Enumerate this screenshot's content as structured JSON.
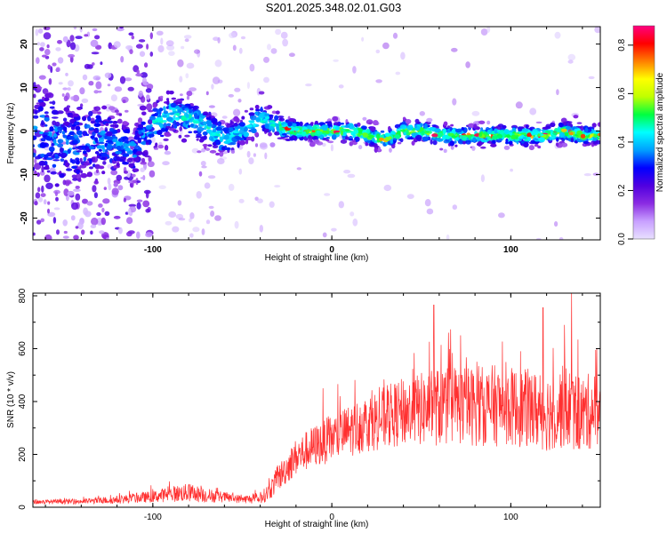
{
  "chart_data": [
    {
      "type": "heatmap",
      "title": "S201.2025.348.02.01.G03",
      "xlabel": "Height of straight line (km)",
      "ylabel": "Frequency (Hz)",
      "xlim": [
        -167,
        150
      ],
      "ylim": [
        -25,
        24
      ],
      "xticks": [
        -100,
        0,
        100
      ],
      "yticks": [
        -20,
        -10,
        0,
        10,
        20
      ],
      "colorbar": {
        "label": "Normalized spectral amplitude",
        "range": [
          0.0,
          0.88
        ],
        "ticks": [
          0.0,
          0.2,
          0.4,
          0.6,
          0.8
        ],
        "tick_labels": [
          "0.0",
          "0.2",
          "0.4",
          "0.6",
          "0.8"
        ],
        "colormap": [
          "#e8e0ff",
          "#c8a0ff",
          "#8a2be2",
          "#5000e0",
          "#0000ff",
          "#00a0ff",
          "#00ffff",
          "#00ff40",
          "#c0ff00",
          "#ffff00",
          "#ff8000",
          "#ff0000",
          "#ff0080"
        ]
      },
      "trace": {
        "x": [
          -167,
          -150,
          -130,
          -110,
          -100,
          -90,
          -80,
          -70,
          -60,
          -50,
          -40,
          -30,
          -20,
          -10,
          0,
          10,
          20,
          30,
          40,
          50,
          60,
          70,
          80,
          90,
          100,
          110,
          120,
          130,
          140,
          150
        ],
        "freq": [
          0,
          -3,
          -2,
          -4,
          1,
          4,
          3,
          1,
          -2,
          0,
          3,
          1,
          0,
          0,
          0,
          0,
          -1,
          -2,
          0,
          0,
          -1,
          -1,
          -1,
          -1,
          -1,
          -1,
          -1,
          0,
          -1,
          -1
        ],
        "spread_hz": [
          12,
          10,
          8,
          6,
          5,
          4,
          4,
          4,
          3.5,
          3,
          3,
          2.5,
          2,
          2,
          2,
          2,
          2,
          2,
          2,
          2,
          2,
          2,
          2,
          2,
          2,
          2,
          2,
          2,
          2,
          2
        ]
      }
    },
    {
      "type": "line",
      "xlabel": "Height of straight line (km)",
      "ylabel": "SNR (10 * v/v)",
      "xlim": [
        -167,
        150
      ],
      "ylim": [
        0,
        810
      ],
      "xticks": [
        -100,
        0,
        100
      ],
      "yticks": [
        0,
        200,
        400,
        600,
        800
      ],
      "color": "#ff3030",
      "envelope": {
        "x": [
          -167,
          -140,
          -120,
          -100,
          -90,
          -80,
          -70,
          -60,
          -50,
          -40,
          -35,
          -30,
          -25,
          -20,
          -10,
          0,
          10,
          20,
          30,
          40,
          50,
          60,
          70,
          80,
          90,
          100,
          110,
          120,
          130,
          140,
          150
        ],
        "mean": [
          20,
          22,
          28,
          40,
          50,
          55,
          45,
          38,
          30,
          32,
          60,
          110,
          150,
          190,
          230,
          260,
          290,
          320,
          340,
          360,
          370,
          380,
          390,
          380,
          385,
          380,
          370,
          360,
          380,
          350,
          380
        ],
        "amplitude": [
          8,
          10,
          15,
          22,
          30,
          35,
          28,
          20,
          15,
          20,
          35,
          50,
          60,
          70,
          80,
          90,
          100,
          110,
          120,
          130,
          140,
          150,
          155,
          150,
          155,
          150,
          150,
          150,
          160,
          150,
          140
        ]
      },
      "peaks": [
        {
          "x": -80,
          "y": 85
        },
        {
          "x": -5,
          "y": 450
        },
        {
          "x": 57,
          "y": 765
        },
        {
          "x": 118,
          "y": 755
        },
        {
          "x": 130,
          "y": 690
        },
        {
          "x": 134,
          "y": 815
        },
        {
          "x": 148,
          "y": 600
        }
      ]
    }
  ]
}
